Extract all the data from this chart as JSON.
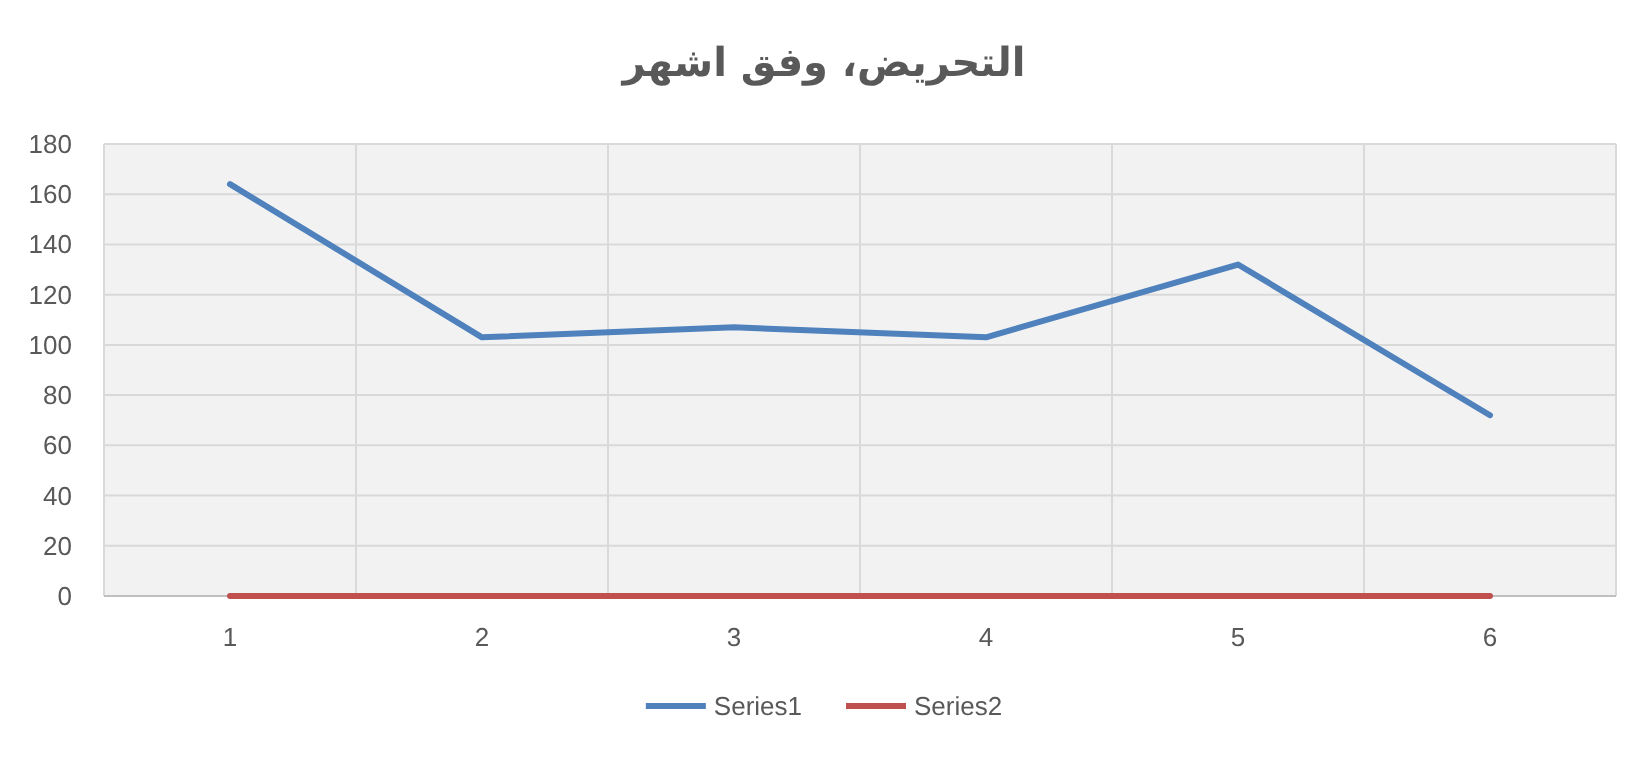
{
  "chart_data": {
    "type": "line",
    "title": "التحريض، وفق اشهر",
    "categories": [
      "1",
      "2",
      "3",
      "4",
      "5",
      "6"
    ],
    "series": [
      {
        "name": "Series1",
        "color": "#4f81bd",
        "values": [
          164,
          103,
          107,
          103,
          132,
          72
        ]
      },
      {
        "name": "Series2",
        "color": "#c0504d",
        "values": [
          0,
          0,
          0,
          0,
          0,
          0
        ]
      }
    ],
    "ylim": [
      0,
      180
    ],
    "yticks": [
      0,
      20,
      40,
      60,
      80,
      100,
      120,
      140,
      160,
      180
    ],
    "grid": true,
    "legend": "bottom",
    "marker": "none",
    "line_style": "solid"
  }
}
